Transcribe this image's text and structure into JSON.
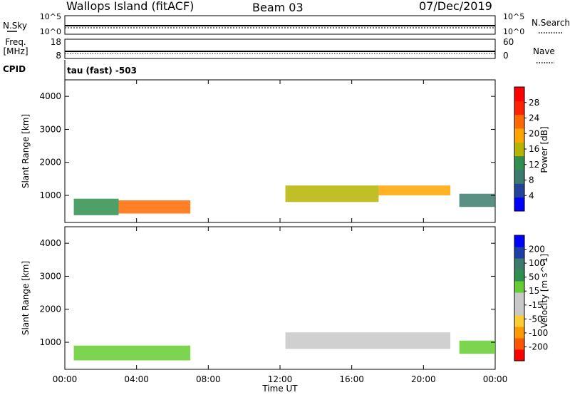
{
  "header": {
    "station": "Wallops Island (fitACF)",
    "beam": "Beam 03",
    "date": "07/Dec/2019"
  },
  "top_panels": {
    "nsky_label": "N.Sky",
    "nsky_ticks": [
      "10^5",
      "10^0"
    ],
    "nsearch_label": "N.Search",
    "nsearch_ticks": [
      "10^5",
      "10^0"
    ],
    "freq_label_1": "Freq.",
    "freq_label_2": "[MHz]",
    "freq_ticks": [
      "18",
      "8"
    ],
    "nave_label": "Nave",
    "nave_ticks": [
      "60",
      "0"
    ],
    "cpid_label": "CPID",
    "cpid_text": "tau (fast) -503"
  },
  "colors": {
    "power_scale": [
      "#0000ff",
      "#22449a",
      "#3d7b6e",
      "#2f8f4e",
      "#b5b500",
      "#ffa500",
      "#ff6a00",
      "#ff2200",
      "#ff0000"
    ],
    "velocity_scale": [
      "#ff0000",
      "#ff5500",
      "#ff9900",
      "#ffcc33",
      "#c8c8c8",
      "#c8c8c8",
      "#66cc33",
      "#2f8f4e",
      "#3d7b6e",
      "#1f3fa8",
      "#0000ff"
    ]
  },
  "chart_data": [
    {
      "type": "heatmap",
      "title": "",
      "xlabel": "",
      "ylabel": "Slant Range [km]",
      "x_ticks": [
        "00:00",
        "04:00",
        "08:00",
        "12:00",
        "16:00",
        "20:00",
        "00:00"
      ],
      "y_ticks": [
        "1000",
        "2000",
        "3000",
        "4000"
      ],
      "xlim_hours": [
        0,
        24
      ],
      "ylim_km": [
        180,
        4500
      ],
      "colorbar": {
        "label": "Power [dB]",
        "range": [
          0,
          32
        ],
        "ticks": [
          "4",
          "8",
          "12",
          "16",
          "20",
          "24",
          "28"
        ]
      },
      "regions": [
        {
          "t_start": 0.5,
          "t_end": 3.0,
          "r_min": 400,
          "r_max": 900,
          "value": 14
        },
        {
          "t_start": 3.0,
          "t_end": 7.0,
          "r_min": 450,
          "r_max": 850,
          "value": 24
        },
        {
          "t_start": 12.3,
          "t_end": 17.5,
          "r_min": 800,
          "r_max": 1300,
          "value": 17
        },
        {
          "t_start": 17.5,
          "t_end": 21.5,
          "r_min": 1000,
          "r_max": 1300,
          "value": 19
        },
        {
          "t_start": 22.0,
          "t_end": 24.0,
          "r_min": 650,
          "r_max": 1050,
          "value": 10
        }
      ]
    },
    {
      "type": "heatmap",
      "title": "",
      "xlabel": "Time UT",
      "ylabel": "Slant Range [km]",
      "x_ticks": [
        "00:00",
        "04:00",
        "08:00",
        "12:00",
        "16:00",
        "20:00",
        "00:00"
      ],
      "y_ticks": [
        "1000",
        "2000",
        "3000",
        "4000"
      ],
      "xlim_hours": [
        0,
        24
      ],
      "ylim_km": [
        180,
        4500
      ],
      "colorbar": {
        "label": "Velocity [m s^-1]",
        "range": [
          -250,
          250
        ],
        "ticks": [
          "-200",
          "-100",
          "-50",
          "-15",
          "15",
          "50",
          "100",
          "200"
        ]
      },
      "regions": [
        {
          "t_start": 0.5,
          "t_end": 7.0,
          "r_min": 450,
          "r_max": 900,
          "value": 50
        },
        {
          "t_start": 12.3,
          "t_end": 21.5,
          "r_min": 800,
          "r_max": 1300,
          "value": 0
        },
        {
          "t_start": 22.0,
          "t_end": 24.0,
          "r_min": 650,
          "r_max": 1050,
          "value": 30
        }
      ]
    }
  ]
}
